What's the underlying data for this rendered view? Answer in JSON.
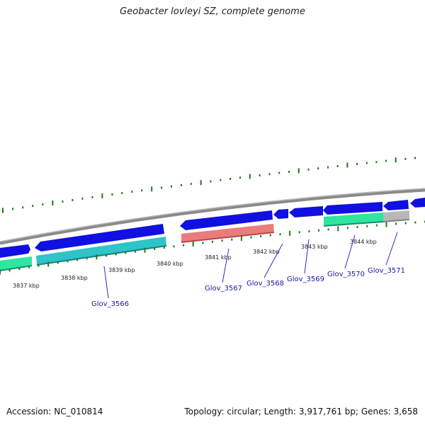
{
  "title": "Geobacter lovleyi SZ, complete genome",
  "footer": {
    "accession": "Accession: NC_010814",
    "summary": "Topology: circular; Length: 3,917,761 bp; Genes: 3,658"
  },
  "colors": {
    "forward_cds": "#1010e0",
    "reverse_cds": "#2ec4c9",
    "pseudo": "#ea7c7c",
    "green_feature": "#2fe6a0",
    "grey_feature": "#b8b8b8",
    "backbone": "#8a8a8a",
    "ticks": "#1a7a1a",
    "label": "#1a1aa0"
  },
  "kbp_labels": [
    "3837 kbp",
    "3838 kbp",
    "3839 kbp",
    "3840 kbp",
    "3841 kbp",
    "3842 kbp",
    "3843 kbp",
    "3844 kbp"
  ],
  "genes": [
    "Glov_3566",
    "Glov_3567",
    "Glov_3568",
    "Glov_3569",
    "Glov_3570",
    "Glov_3571"
  ]
}
